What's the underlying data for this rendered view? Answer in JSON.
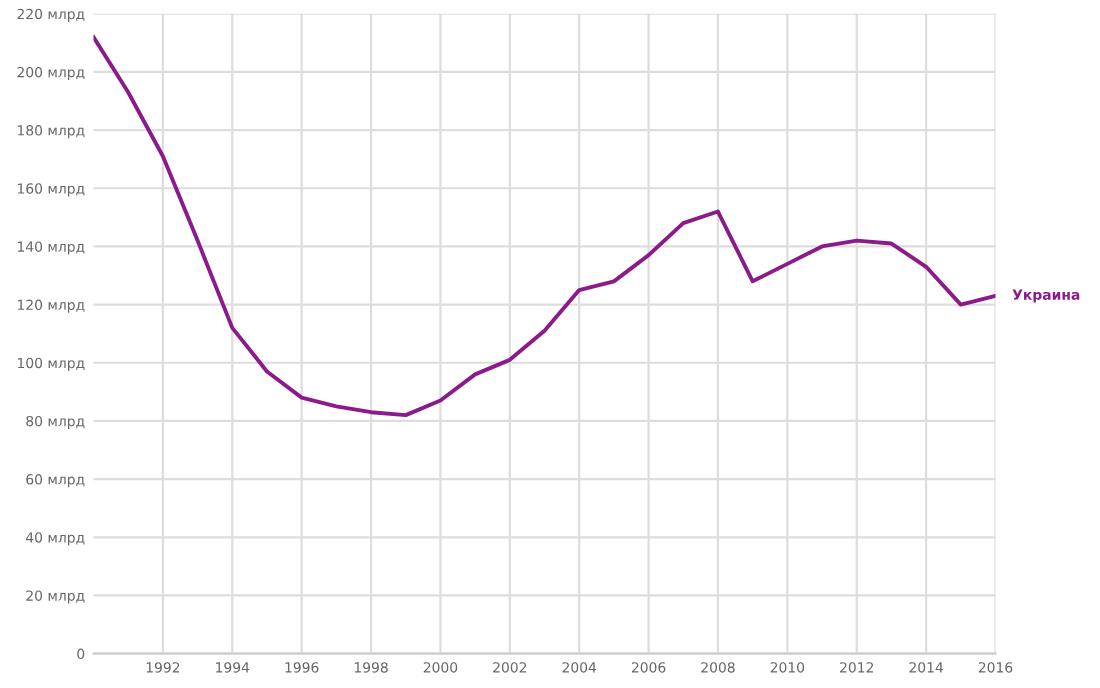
{
  "chart_data": {
    "type": "line",
    "x": [
      1990,
      1991,
      1992,
      1993,
      1994,
      1995,
      1996,
      1997,
      1998,
      1999,
      2000,
      2001,
      2002,
      2003,
      2004,
      2005,
      2006,
      2007,
      2008,
      2009,
      2010,
      2011,
      2012,
      2013,
      2014,
      2015,
      2016
    ],
    "series": [
      {
        "name": "Украина",
        "color": "#8b1a8b",
        "values": [
          212,
          193,
          171,
          142,
          112,
          97,
          88,
          85,
          83,
          82,
          87,
          96,
          101,
          111,
          125,
          128,
          137,
          148,
          152,
          128,
          134,
          140,
          142,
          141,
          133,
          120,
          123
        ]
      }
    ],
    "xlim": [
      1990,
      2016
    ],
    "xticks": [
      1992,
      1994,
      1996,
      1998,
      2000,
      2002,
      2004,
      2006,
      2008,
      2010,
      2012,
      2014,
      2016
    ],
    "ylim": [
      0,
      220
    ],
    "yticks": [
      0,
      {
        "value": 20,
        "label": "20 млрд"
      },
      {
        "value": 40,
        "label": "40 млрд"
      },
      {
        "value": 60,
        "label": "60 млрд"
      },
      {
        "value": 80,
        "label": "80 млрд"
      },
      {
        "value": 100,
        "label": "100 млрд"
      },
      {
        "value": 120,
        "label": "120 млрд"
      },
      {
        "value": 140,
        "label": "140 млрд"
      },
      {
        "value": 160,
        "label": "160 млрд"
      },
      {
        "value": 180,
        "label": "180 млрд"
      },
      {
        "value": 200,
        "label": "200 млрд"
      },
      {
        "value": 220,
        "label": "220 млрд"
      }
    ],
    "grid": true,
    "legend": false,
    "marker": "none",
    "line_style": "solid"
  }
}
